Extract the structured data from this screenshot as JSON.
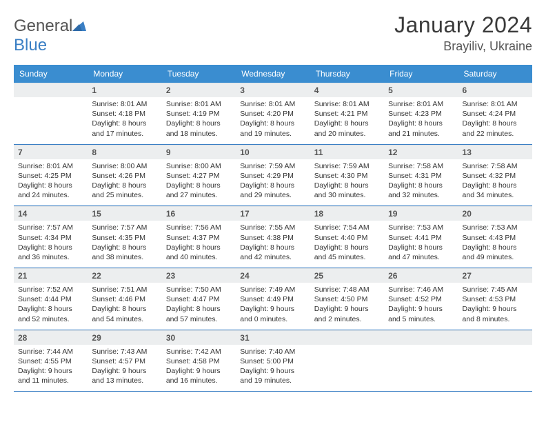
{
  "logo": {
    "textA": "General",
    "textB": "Blue"
  },
  "title": "January 2024",
  "location": "Brayiliv, Ukraine",
  "colors": {
    "header_bg": "#3a8dd0",
    "header_text": "#ffffff",
    "daynum_bg": "#eceeef",
    "rule": "#3a7fc4",
    "logo_blue": "#3a7fc4"
  },
  "dayNames": [
    "Sunday",
    "Monday",
    "Tuesday",
    "Wednesday",
    "Thursday",
    "Friday",
    "Saturday"
  ],
  "startOffset": 1,
  "daysInMonth": 31,
  "days": {
    "1": {
      "sunrise": "8:01 AM",
      "sunset": "4:18 PM",
      "dl": "8 hours and 17 minutes."
    },
    "2": {
      "sunrise": "8:01 AM",
      "sunset": "4:19 PM",
      "dl": "8 hours and 18 minutes."
    },
    "3": {
      "sunrise": "8:01 AM",
      "sunset": "4:20 PM",
      "dl": "8 hours and 19 minutes."
    },
    "4": {
      "sunrise": "8:01 AM",
      "sunset": "4:21 PM",
      "dl": "8 hours and 20 minutes."
    },
    "5": {
      "sunrise": "8:01 AM",
      "sunset": "4:23 PM",
      "dl": "8 hours and 21 minutes."
    },
    "6": {
      "sunrise": "8:01 AM",
      "sunset": "4:24 PM",
      "dl": "8 hours and 22 minutes."
    },
    "7": {
      "sunrise": "8:01 AM",
      "sunset": "4:25 PM",
      "dl": "8 hours and 24 minutes."
    },
    "8": {
      "sunrise": "8:00 AM",
      "sunset": "4:26 PM",
      "dl": "8 hours and 25 minutes."
    },
    "9": {
      "sunrise": "8:00 AM",
      "sunset": "4:27 PM",
      "dl": "8 hours and 27 minutes."
    },
    "10": {
      "sunrise": "7:59 AM",
      "sunset": "4:29 PM",
      "dl": "8 hours and 29 minutes."
    },
    "11": {
      "sunrise": "7:59 AM",
      "sunset": "4:30 PM",
      "dl": "8 hours and 30 minutes."
    },
    "12": {
      "sunrise": "7:58 AM",
      "sunset": "4:31 PM",
      "dl": "8 hours and 32 minutes."
    },
    "13": {
      "sunrise": "7:58 AM",
      "sunset": "4:32 PM",
      "dl": "8 hours and 34 minutes."
    },
    "14": {
      "sunrise": "7:57 AM",
      "sunset": "4:34 PM",
      "dl": "8 hours and 36 minutes."
    },
    "15": {
      "sunrise": "7:57 AM",
      "sunset": "4:35 PM",
      "dl": "8 hours and 38 minutes."
    },
    "16": {
      "sunrise": "7:56 AM",
      "sunset": "4:37 PM",
      "dl": "8 hours and 40 minutes."
    },
    "17": {
      "sunrise": "7:55 AM",
      "sunset": "4:38 PM",
      "dl": "8 hours and 42 minutes."
    },
    "18": {
      "sunrise": "7:54 AM",
      "sunset": "4:40 PM",
      "dl": "8 hours and 45 minutes."
    },
    "19": {
      "sunrise": "7:53 AM",
      "sunset": "4:41 PM",
      "dl": "8 hours and 47 minutes."
    },
    "20": {
      "sunrise": "7:53 AM",
      "sunset": "4:43 PM",
      "dl": "8 hours and 49 minutes."
    },
    "21": {
      "sunrise": "7:52 AM",
      "sunset": "4:44 PM",
      "dl": "8 hours and 52 minutes."
    },
    "22": {
      "sunrise": "7:51 AM",
      "sunset": "4:46 PM",
      "dl": "8 hours and 54 minutes."
    },
    "23": {
      "sunrise": "7:50 AM",
      "sunset": "4:47 PM",
      "dl": "8 hours and 57 minutes."
    },
    "24": {
      "sunrise": "7:49 AM",
      "sunset": "4:49 PM",
      "dl": "9 hours and 0 minutes."
    },
    "25": {
      "sunrise": "7:48 AM",
      "sunset": "4:50 PM",
      "dl": "9 hours and 2 minutes."
    },
    "26": {
      "sunrise": "7:46 AM",
      "sunset": "4:52 PM",
      "dl": "9 hours and 5 minutes."
    },
    "27": {
      "sunrise": "7:45 AM",
      "sunset": "4:53 PM",
      "dl": "9 hours and 8 minutes."
    },
    "28": {
      "sunrise": "7:44 AM",
      "sunset": "4:55 PM",
      "dl": "9 hours and 11 minutes."
    },
    "29": {
      "sunrise": "7:43 AM",
      "sunset": "4:57 PM",
      "dl": "9 hours and 13 minutes."
    },
    "30": {
      "sunrise": "7:42 AM",
      "sunset": "4:58 PM",
      "dl": "9 hours and 16 minutes."
    },
    "31": {
      "sunrise": "7:40 AM",
      "sunset": "5:00 PM",
      "dl": "9 hours and 19 minutes."
    }
  },
  "labels": {
    "sunrise": "Sunrise: ",
    "sunset": "Sunset: ",
    "daylight": "Daylight: "
  }
}
